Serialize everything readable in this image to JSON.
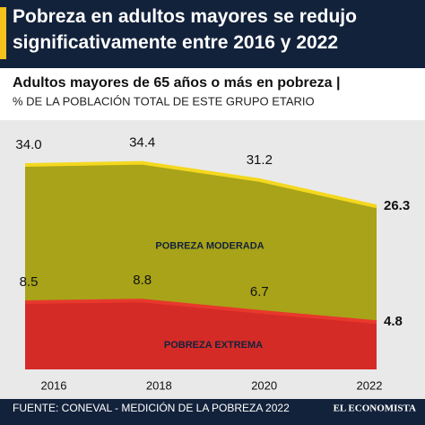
{
  "chart_data": {
    "type": "area",
    "title": "Pobreza en adultos mayores se redujo significativamente entre 2016 y 2022",
    "subtitle": "Adultos mayores de 65 años o más en pobreza |",
    "y_label": "% DE LA POBLACIÓN TOTAL DE ESTE GRUPO ETARIO",
    "categories": [
      "2016",
      "2018",
      "2020",
      "2022"
    ],
    "series": [
      {
        "name": "POBREZA MODERADA",
        "color": "#a8a318",
        "line_color": "#f4d81f",
        "values": [
          34.0,
          34.4,
          31.2,
          26.3
        ],
        "value_labels": [
          "34.0",
          "34.4",
          "31.2",
          "26.3"
        ]
      },
      {
        "name": "POBREZA EXTREMA",
        "color": "#d42b27",
        "line_color": "#e8382c",
        "values": [
          8.5,
          8.8,
          6.7,
          4.8
        ]
      }
    ],
    "ylim": [
      -4,
      40
    ],
    "source": "FUENTE: CONEVAL - MEDICIÓN DE LA POBREZA 2022",
    "brand": "EL ECONOMISTA"
  }
}
